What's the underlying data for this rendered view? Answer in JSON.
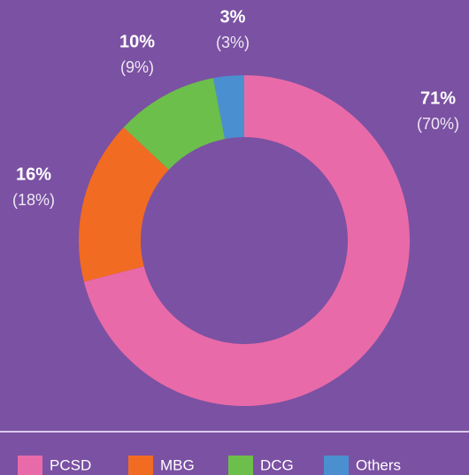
{
  "chart_data": {
    "type": "donut",
    "categories": [
      "PCSD",
      "MBG",
      "DCG",
      "Others"
    ],
    "values": [
      71,
      16,
      10,
      3
    ],
    "value_labels": [
      "71%",
      "16%",
      "10%",
      "3%"
    ],
    "prior_values": [
      70,
      18,
      9,
      3
    ],
    "prior_value_labels": [
      "(70%)",
      "(18%)",
      "(9%)",
      "(3%)"
    ],
    "colors": [
      "#e96aa8",
      "#f26b22",
      "#6cbf4a",
      "#4a90d0"
    ]
  }
}
